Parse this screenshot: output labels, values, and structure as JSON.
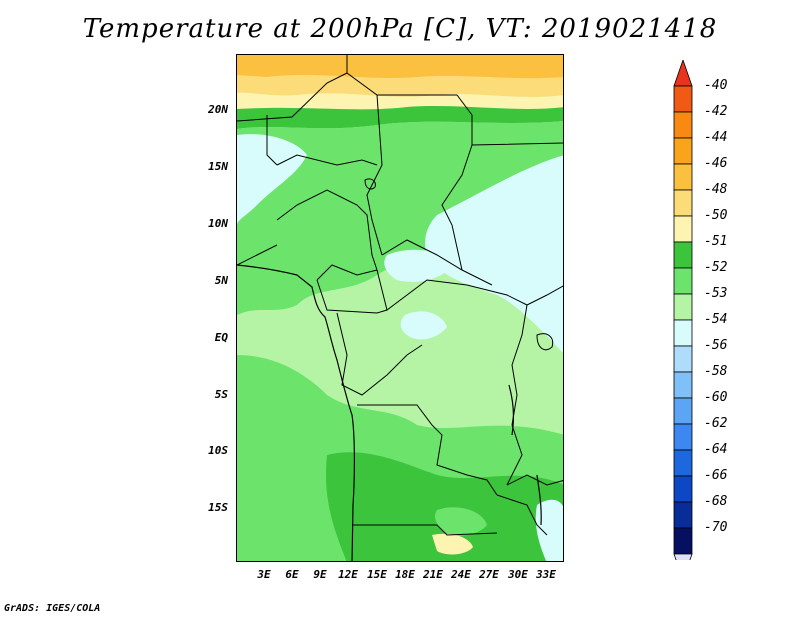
{
  "title": "Temperature at 200hPa [C], VT: 2019021418",
  "footer": "GrADS: IGES/COLA",
  "map": {
    "lat_labels": [
      "20N",
      "15N",
      "10N",
      "5N",
      "EQ",
      "5S",
      "10S",
      "15S"
    ],
    "lon_labels": [
      "3E",
      "6E",
      "9E",
      "12E",
      "15E",
      "18E",
      "21E",
      "24E",
      "27E",
      "30E",
      "33E"
    ]
  },
  "colorbar": {
    "labels": [
      "-40",
      "-42",
      "-44",
      "-46",
      "-48",
      "-50",
      "-51",
      "-52",
      "-53",
      "-54",
      "-56",
      "-58",
      "-60",
      "-62",
      "-64",
      "-66",
      "-68",
      "-70"
    ],
    "colors": [
      "#e8341c",
      "#f05a14",
      "#f88a14",
      "#faa41c",
      "#fcc040",
      "#fcdc78",
      "#fcf4b0",
      "#3cc43c",
      "#6ce46c",
      "#b4f4a4",
      "#d8fcfc",
      "#b0dcfc",
      "#80c0f8",
      "#5ca4f4",
      "#3c88f0",
      "#1c68dc",
      "#0c48c4",
      "#082c98",
      "#061060",
      "#e0e0f8"
    ]
  },
  "chart_data": {
    "type": "heatmap",
    "title": "Temperature at 200hPa [C], VT: 2019021418",
    "variable": "Temperature at 200hPa",
    "units": "C",
    "valid_time": "2019021418",
    "x_ticks": [
      "3E",
      "6E",
      "9E",
      "12E",
      "15E",
      "18E",
      "21E",
      "24E",
      "27E",
      "30E",
      "33E"
    ],
    "y_ticks": [
      "20N",
      "15N",
      "10N",
      "5N",
      "EQ",
      "5S",
      "10S",
      "15S"
    ],
    "color_levels": [
      -40,
      -42,
      -44,
      -46,
      -48,
      -50,
      -51,
      -52,
      -53,
      -54,
      -56,
      -58,
      -60,
      -62,
      -64,
      -66,
      -68,
      -70
    ]
  }
}
